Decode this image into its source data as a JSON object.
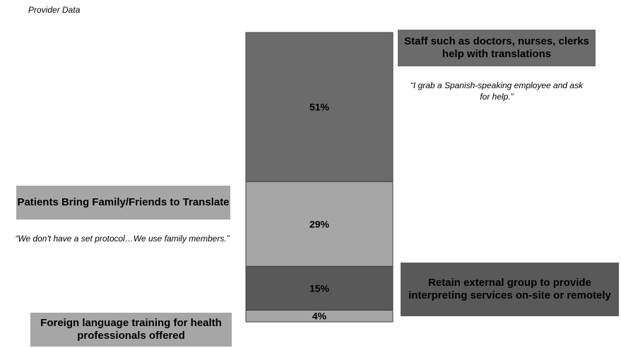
{
  "header": {
    "subtitle": "Provider Data"
  },
  "chart_data": {
    "type": "bar",
    "stacked": true,
    "categories": [
      "Foreign language training for health professionals offered",
      "Retain external group to provide interpreting services on-site or remotely",
      "Patients Bring Family/Friends to Translate",
      "Staff such as doctors, nurses, clerks help with translations"
    ],
    "values": [
      4,
      15,
      29,
      51
    ],
    "labels": [
      "4%",
      "15%",
      "29%",
      "51%"
    ],
    "colors": [
      "#a6a6a6",
      "#595959",
      "#a6a6a6",
      "#6b6b6b"
    ]
  },
  "callouts": {
    "staff": {
      "title": "Staff such as doctors, nurses, clerks help with translations",
      "quote": "“I grab a Spanish-speaking employee and ask for help.”"
    },
    "family": {
      "title": "Patients Bring Family/Friends to Translate",
      "quote": "“We don't have a set protocol…We use family members.”"
    },
    "external": {
      "title": "Retain external group to provide interpreting services on-site or remotely"
    },
    "training": {
      "title": "Foreign language training for health professionals offered"
    }
  },
  "colors": {
    "callout_dark": "#595959",
    "callout_light": "#a6a6a6",
    "bar_border": "#404040"
  }
}
